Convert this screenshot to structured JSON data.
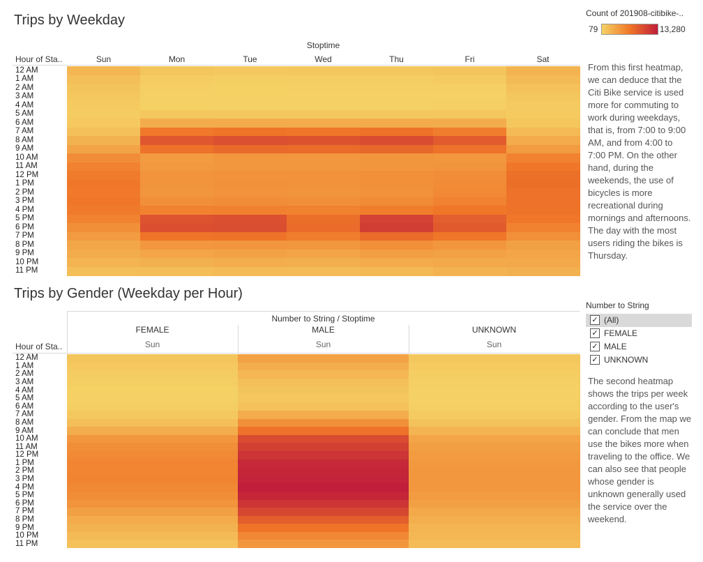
{
  "colors": {
    "low": "#f5d265",
    "high": "#c4213a"
  },
  "legend": {
    "title": "Count of 201908-citibike-..",
    "min_label": "79",
    "max_label": "13,280",
    "min": 79,
    "max": 13280
  },
  "hours": [
    "12 AM",
    "1 AM",
    "2 AM",
    "3 AM",
    "4 AM",
    "5 AM",
    "6 AM",
    "7 AM",
    "8 AM",
    "9 AM",
    "10 AM",
    "11 AM",
    "12 PM",
    "1 PM",
    "2 PM",
    "3 PM",
    "4 PM",
    "5 PM",
    "6 PM",
    "7 PM",
    "8 PM",
    "9 PM",
    "10 PM",
    "11 PM"
  ],
  "chart_data": [
    {
      "type": "heatmap",
      "title": "Trips by Weekday",
      "column_group_label": "Stoptime",
      "row_header": "Hour of Sta..",
      "columns": [
        "Sun",
        "Mon",
        "Tue",
        "Wed",
        "Thu",
        "Fri",
        "Sat"
      ],
      "rows": [
        "12 AM",
        "1 AM",
        "2 AM",
        "3 AM",
        "4 AM",
        "5 AM",
        "6 AM",
        "7 AM",
        "8 AM",
        "9 AM",
        "10 AM",
        "11 AM",
        "12 PM",
        "1 PM",
        "2 PM",
        "3 PM",
        "4 PM",
        "5 PM",
        "6 PM",
        "7 PM",
        "8 PM",
        "9 PM",
        "10 PM",
        "11 PM"
      ],
      "values": [
        [
          2100,
          1000,
          800,
          900,
          900,
          1100,
          2300
        ],
        [
          1500,
          500,
          400,
          450,
          450,
          550,
          1800
        ],
        [
          1100,
          300,
          250,
          280,
          280,
          330,
          1300
        ],
        [
          800,
          200,
          180,
          200,
          200,
          230,
          900
        ],
        [
          600,
          250,
          230,
          240,
          240,
          260,
          650
        ],
        [
          500,
          900,
          850,
          850,
          850,
          900,
          600
        ],
        [
          700,
          2800,
          2900,
          2900,
          2900,
          2800,
          900
        ],
        [
          1400,
          6500,
          6800,
          6700,
          6900,
          6200,
          1800
        ],
        [
          2400,
          9000,
          9500,
          9400,
          9800,
          8700,
          2900
        ],
        [
          3400,
          7000,
          7600,
          7500,
          7800,
          7000,
          4000
        ],
        [
          5000,
          4000,
          4300,
          4300,
          4400,
          4300,
          5800
        ],
        [
          5800,
          4200,
          4300,
          4300,
          4400,
          4500,
          6600
        ],
        [
          6300,
          4500,
          4600,
          4600,
          4800,
          5000,
          7100
        ],
        [
          6600,
          4500,
          4700,
          4600,
          4800,
          5200,
          7200
        ],
        [
          6500,
          4400,
          4600,
          4500,
          4700,
          5300,
          7000
        ],
        [
          6600,
          4900,
          5000,
          4900,
          5200,
          5800,
          7000
        ],
        [
          6400,
          5800,
          5900,
          5800,
          6200,
          6700,
          6900
        ],
        [
          5800,
          9300,
          9500,
          7200,
          10600,
          8400,
          6600
        ],
        [
          4900,
          9600,
          9700,
          7400,
          10900,
          8800,
          5800
        ],
        [
          4000,
          6800,
          6900,
          6200,
          7500,
          6700,
          4800
        ],
        [
          3200,
          4300,
          4400,
          4300,
          4800,
          4400,
          3700
        ],
        [
          2800,
          3300,
          3500,
          3400,
          3800,
          3600,
          3300
        ],
        [
          2200,
          2500,
          2700,
          2600,
          2900,
          3000,
          3000
        ],
        [
          1500,
          1600,
          1800,
          1700,
          1900,
          2300,
          2500
        ]
      ]
    },
    {
      "type": "heatmap",
      "title": "Trips by Gender (Weekday per Hour)",
      "column_group_label": "Number to String / Stoptime",
      "row_header": "Hour of Sta..",
      "columns": [
        "FEMALE",
        "MALE",
        "UNKNOWN"
      ],
      "sub_columns": [
        "Sun",
        "Sun",
        "Sun"
      ],
      "rows": [
        "12 AM",
        "1 AM",
        "2 AM",
        "3 AM",
        "4 AM",
        "5 AM",
        "6 AM",
        "7 AM",
        "8 AM",
        "9 AM",
        "10 AM",
        "11 AM",
        "12 PM",
        "1 PM",
        "2 PM",
        "3 PM",
        "4 PM",
        "5 PM",
        "6 PM",
        "7 PM",
        "8 PM",
        "9 PM",
        "10 PM",
        "11 PM"
      ],
      "values": [
        [
          1000,
          3500,
          900
        ],
        [
          700,
          2700,
          600
        ],
        [
          500,
          2000,
          400
        ],
        [
          350,
          1400,
          300
        ],
        [
          250,
          1100,
          200
        ],
        [
          220,
          900,
          180
        ],
        [
          350,
          1300,
          300
        ],
        [
          800,
          2800,
          600
        ],
        [
          1500,
          4800,
          1200
        ],
        [
          2700,
          7000,
          2200
        ],
        [
          4300,
          9800,
          3300
        ],
        [
          4900,
          10800,
          3800
        ],
        [
          5300,
          11600,
          4000
        ],
        [
          5600,
          12400,
          4200
        ],
        [
          5600,
          12700,
          4300
        ],
        [
          5700,
          12800,
          4300
        ],
        [
          5400,
          13280,
          4300
        ],
        [
          5100,
          12700,
          4000
        ],
        [
          4500,
          11600,
          3700
        ],
        [
          3700,
          10200,
          3100
        ],
        [
          2900,
          8500,
          2600
        ],
        [
          2400,
          6800,
          2200
        ],
        [
          1800,
          5400,
          2000
        ],
        [
          1300,
          4300,
          1700
        ]
      ]
    }
  ],
  "description_1": "From this first heatmap, we can deduce that the Citi Bike service is used more for commuting to work during weekdays, that is, from 7:00 to 9:00 AM, and from 4:00 to 7:00 PM. On the other hand, during the weekends, the use of bicycles is more recreational during mornings and afternoons. The day with the most users riding the bikes is Thursday.",
  "filter": {
    "title": "Number to String",
    "items": [
      {
        "label": "(All)",
        "checked": true,
        "highlighted": true
      },
      {
        "label": "FEMALE",
        "checked": true,
        "highlighted": false
      },
      {
        "label": "MALE",
        "checked": true,
        "highlighted": false
      },
      {
        "label": "UNKNOWN",
        "checked": true,
        "highlighted": false
      }
    ]
  },
  "description_2": "The second heatmap shows the trips per week according to the user's gender. From the map we can conclude that men use the bikes more when traveling to the office. We can also see that people whose gender is unknown generally used the service over the weekend."
}
